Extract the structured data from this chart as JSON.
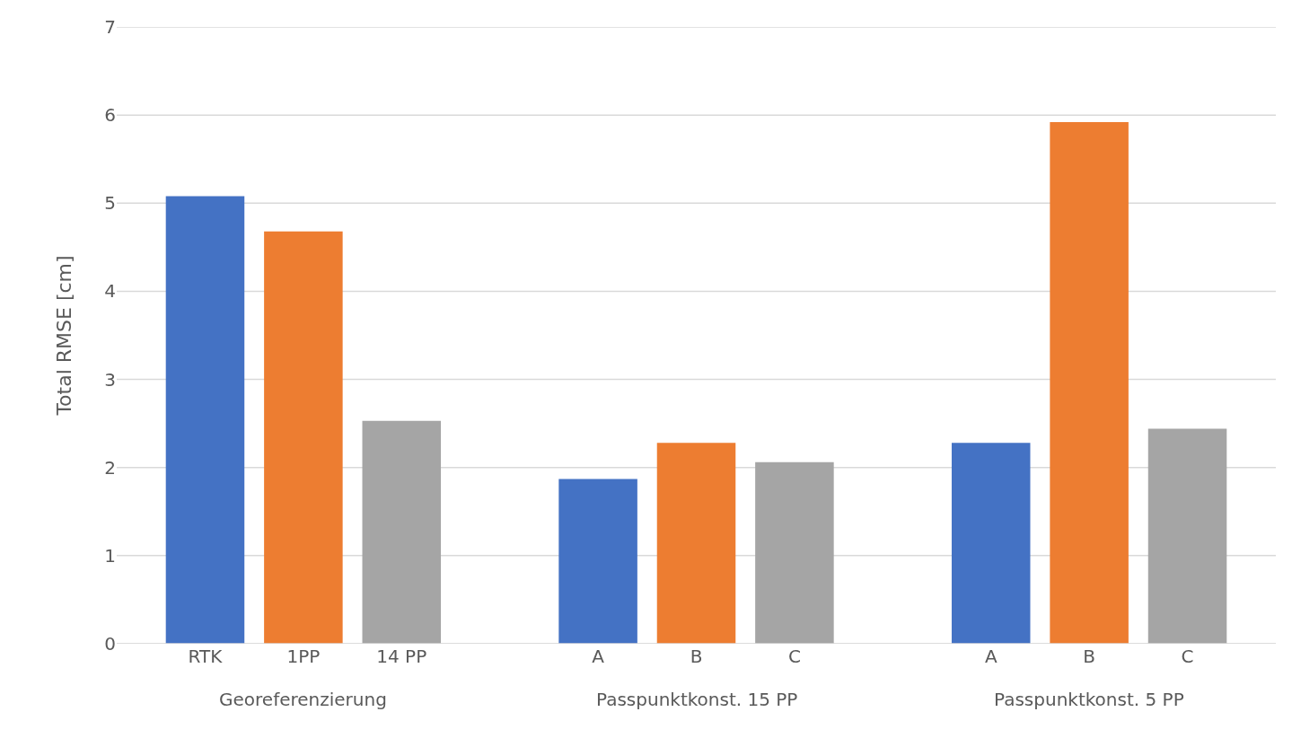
{
  "chart_data": {
    "type": "bar",
    "ylabel": "Total RMSE [cm]",
    "categories": [
      "RTK",
      "1PP",
      "14 PP",
      null,
      "A",
      "B",
      "C",
      null,
      "A",
      "B",
      "C"
    ],
    "values": [
      5.08,
      4.68,
      2.53,
      null,
      1.87,
      2.28,
      2.06,
      null,
      2.28,
      5.92,
      2.44
    ],
    "colors": [
      "#4472c4",
      "#ed7d31",
      "#a5a5a5",
      null,
      "#4472c4",
      "#ed7d31",
      "#a5a5a5",
      null,
      "#4472c4",
      "#ed7d31",
      "#a5a5a5"
    ],
    "annotations": [
      "Georeferenzierung",
      "Passpunktkonst. 15 PP",
      "Passpunktkonst. 5 PP"
    ],
    "ylim": [
      0,
      7
    ],
    "yticks": [
      0,
      1,
      2,
      3,
      4,
      5,
      6,
      7
    ],
    "grid": "y"
  }
}
